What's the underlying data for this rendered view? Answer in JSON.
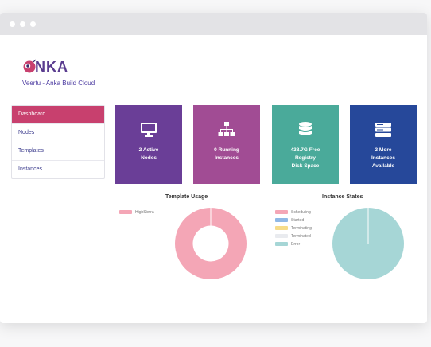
{
  "brand": {
    "name": "NKA",
    "subtitle": "Veertu - Anka Build Cloud"
  },
  "sidebar": {
    "items": [
      {
        "label": "Dashboard",
        "active": true
      },
      {
        "label": "Nodes",
        "active": false
      },
      {
        "label": "Templates",
        "active": false
      },
      {
        "label": "Instances",
        "active": false
      }
    ]
  },
  "cards": [
    {
      "icon": "monitor-icon",
      "line1": "2 Active",
      "line2": "Nodes",
      "line3": "",
      "color": "#6a3e97"
    },
    {
      "icon": "network-icon",
      "line1": "0 Running",
      "line2": "Instances",
      "line3": "",
      "color": "#a14c94"
    },
    {
      "icon": "database-icon",
      "line1": "438.7G Free",
      "line2": "Registry",
      "line3": "Disk Space",
      "color": "#4aaa9a"
    },
    {
      "icon": "server-icon",
      "line1": "3 More",
      "line2": "Instances",
      "line3": "Available",
      "color": "#26489a"
    }
  ],
  "chart_data": [
    {
      "type": "pie",
      "title": "Template Usage",
      "categories": [
        "HighSierra"
      ],
      "values": [
        100
      ],
      "colors": [
        "#f4a6b6"
      ],
      "donut": true,
      "legend": "left"
    },
    {
      "type": "pie",
      "title": "Instance States",
      "categories": [
        "Scheduling",
        "Started",
        "Terminating",
        "Terminated",
        "Error"
      ],
      "values": [
        0,
        0,
        0,
        0,
        100
      ],
      "colors": [
        "#f4a6b6",
        "#8fb8e6",
        "#f6dc8a",
        "#e9ebef",
        "#a6d6d6"
      ],
      "donut": false,
      "legend": "left"
    }
  ]
}
